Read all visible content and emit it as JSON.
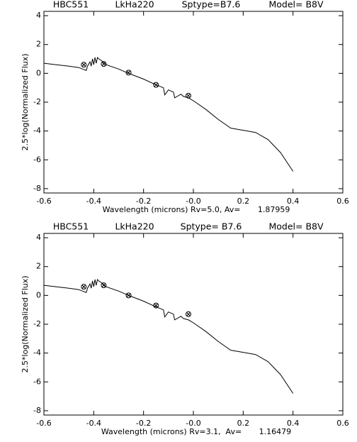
{
  "chart_data": [
    {
      "type": "line",
      "title": [
        "HBC551",
        "LkHa220",
        "Sptype=B7.6",
        "Model= B8V"
      ],
      "xlabel": "Wavelength (microns) Rv=5.0, Av=       1.87959",
      "ylabel": "2.5*log(Normalized Flux)",
      "xlim": [
        -0.6,
        0.6
      ],
      "ylim": [
        -8.3,
        4.3
      ],
      "xticks": [
        -0.6,
        -0.4,
        -0.2,
        {
          "value": 0,
          "label": "-0.0"
        },
        0.2,
        0.4,
        0.6
      ],
      "yticks": [
        -8,
        -6,
        -4,
        -2,
        0,
        2,
        4
      ],
      "color": "#000000",
      "x": [
        -0.6,
        -0.55,
        -0.5,
        -0.46,
        -0.43,
        -0.425,
        -0.415,
        -0.41,
        -0.405,
        -0.4,
        -0.395,
        -0.39,
        -0.385,
        -0.38,
        -0.37,
        -0.35,
        -0.3,
        -0.26,
        -0.2,
        -0.15,
        -0.12,
        -0.115,
        -0.1,
        -0.08,
        -0.075,
        -0.05,
        -0.04,
        -0.02,
        0.0,
        0.05,
        0.1,
        0.15,
        0.2,
        0.25,
        0.3,
        0.35,
        0.4
      ],
      "values": [
        0.7,
        0.6,
        0.5,
        0.4,
        0.2,
        0.5,
        0.8,
        0.5,
        1.0,
        0.6,
        1.1,
        0.7,
        1.1,
        1.0,
        0.9,
        0.6,
        0.3,
        0.0,
        -0.4,
        -0.8,
        -1.0,
        -1.5,
        -1.15,
        -1.3,
        -1.7,
        -1.45,
        -1.6,
        -1.7,
        -1.9,
        -2.5,
        -3.2,
        -3.8,
        -3.95,
        -4.1,
        -4.6,
        -5.5,
        -6.8
      ],
      "points": {
        "x": [
          -0.44,
          -0.36,
          -0.26,
          -0.15,
          -0.02
        ],
        "values": [
          0.6,
          0.65,
          0.05,
          -0.8,
          -1.55
        ]
      }
    },
    {
      "type": "line",
      "title": [
        "HBC551",
        "LkHa220",
        "Sptype= B7.6",
        "Model= B8V"
      ],
      "xlabel": "Wavelength (microns) Rv=3.1,  Av=       1.16479",
      "ylabel": "2.5*log(Normalized Flux)",
      "xlim": [
        -0.6,
        0.6
      ],
      "ylim": [
        -8.3,
        4.3
      ],
      "xticks": [
        -0.6,
        -0.4,
        -0.2,
        {
          "value": 0,
          "label": "-0.0"
        },
        0.2,
        0.4,
        0.6
      ],
      "yticks": [
        -8,
        -6,
        -4,
        -2,
        0,
        2,
        4
      ],
      "color": "#000000",
      "x": [
        -0.6,
        -0.55,
        -0.5,
        -0.46,
        -0.43,
        -0.425,
        -0.415,
        -0.41,
        -0.405,
        -0.4,
        -0.395,
        -0.39,
        -0.385,
        -0.38,
        -0.37,
        -0.35,
        -0.3,
        -0.26,
        -0.2,
        -0.15,
        -0.12,
        -0.115,
        -0.1,
        -0.08,
        -0.075,
        -0.05,
        -0.04,
        -0.02,
        0.0,
        0.05,
        0.1,
        0.15,
        0.2,
        0.25,
        0.3,
        0.35,
        0.4
      ],
      "values": [
        0.7,
        0.6,
        0.5,
        0.4,
        0.2,
        0.5,
        0.8,
        0.5,
        1.0,
        0.6,
        1.1,
        0.7,
        1.1,
        1.0,
        0.9,
        0.6,
        0.3,
        0.0,
        -0.4,
        -0.8,
        -1.0,
        -1.5,
        -1.15,
        -1.3,
        -1.7,
        -1.45,
        -1.6,
        -1.7,
        -1.9,
        -2.5,
        -3.2,
        -3.8,
        -3.95,
        -4.1,
        -4.6,
        -5.5,
        -6.8
      ],
      "points": {
        "x": [
          -0.44,
          -0.36,
          -0.26,
          -0.15,
          -0.02
        ],
        "values": [
          0.6,
          0.7,
          0.0,
          -0.7,
          -1.3
        ]
      }
    }
  ]
}
